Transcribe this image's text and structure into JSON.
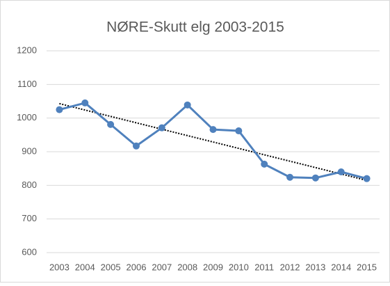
{
  "chart_data": {
    "type": "line",
    "title": "NØRE-Skutt elg 2003-2015",
    "categories": [
      "2003",
      "2004",
      "2005",
      "2006",
      "2007",
      "2008",
      "2009",
      "2010",
      "2011",
      "2012",
      "2013",
      "2014",
      "2015"
    ],
    "values": [
      1025,
      1045,
      981,
      917,
      971,
      1039,
      966,
      962,
      863,
      824,
      822,
      840,
      820
    ],
    "color": "#4f81bd",
    "trendline": true,
    "trend_color": "#000000",
    "ylim": [
      600,
      1200
    ],
    "yticks": [
      600,
      700,
      800,
      900,
      1000,
      1100,
      1200
    ],
    "grid": true
  }
}
